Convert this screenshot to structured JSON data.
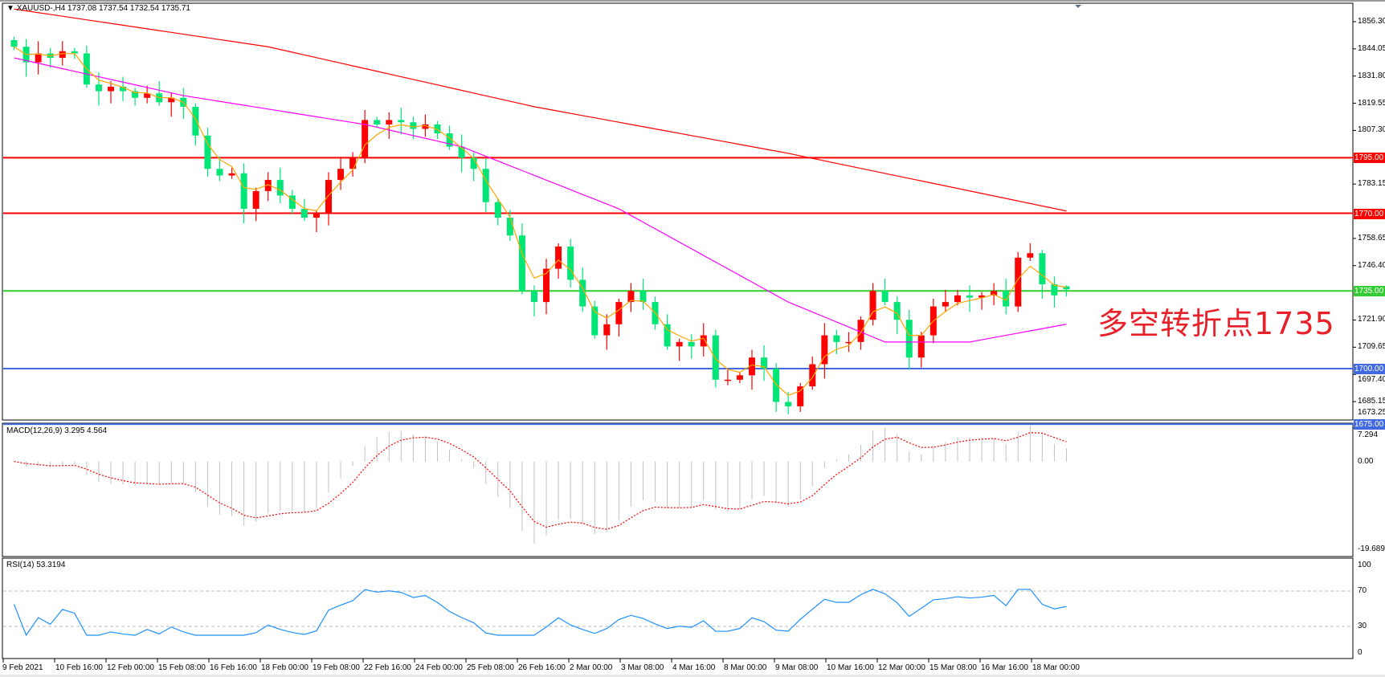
{
  "header": {
    "symbol_label": "XAUUSD-,H4",
    "ohlc": "1737.08 1737.54 1732.54 1735.71"
  },
  "annotation": "多空转折点1735",
  "colors": {
    "bull": "#ff0000",
    "bear": "#00e676",
    "ma_short": "#ffa500",
    "ma_mid": "#ff00ff",
    "ma_long": "#ff0000",
    "macd_hist": "#c0c0c0",
    "macd_signal": "#ff0000",
    "rsi": "#1e90ff"
  },
  "price_axis": {
    "ticks": [
      "1856.30",
      "1844.05",
      "1831.80",
      "1819.55",
      "1807.30",
      "1783.15",
      "1758.65",
      "1746.40",
      "1721.90",
      "1709.65",
      "1697.40",
      "1685.15",
      "1673.25"
    ]
  },
  "levels": [
    {
      "price": 1795.0,
      "label": "1795.00",
      "color": "#ff0000"
    },
    {
      "price": 1770.0,
      "label": "1770.00",
      "color": "#ff0000"
    },
    {
      "price": 1735.0,
      "label": "1735.00",
      "color": "#32cd32"
    },
    {
      "price": 1700.0,
      "label": "1700.00",
      "color": "#4169e1"
    },
    {
      "price": 1675.0,
      "label": "1675.00",
      "color": "#4169e1"
    }
  ],
  "macd": {
    "label": "MACD(12,26,9) 3.295 4.564",
    "ticks": [
      "7.294",
      "0.00",
      "-19.689"
    ]
  },
  "rsi": {
    "label": "RSI(14) 53.3194",
    "ticks": [
      "100",
      "70",
      "30",
      "0"
    ]
  },
  "time_axis": [
    "9 Feb 2021",
    "10 Feb 16:00",
    "12 Feb 00:00",
    "15 Feb 08:00",
    "16 Feb 16:00",
    "18 Feb 00:00",
    "19 Feb 08:00",
    "22 Feb 16:00",
    "24 Feb 00:00",
    "25 Feb 08:00",
    "26 Feb 16:00",
    "2 Mar 00:00",
    "3 Mar 08:00",
    "4 Mar 16:00",
    "8 Mar 00:00",
    "9 Mar 08:00",
    "10 Mar 16:00",
    "12 Mar 00:00",
    "15 Mar 08:00",
    "16 Mar 16:00",
    "18 Mar 00:00"
  ],
  "chart_data": {
    "type": "candlestick",
    "closes": [
      1845,
      1838,
      1842,
      1840,
      1843,
      1842,
      1828,
      1825,
      1827,
      1825,
      1822,
      1824,
      1820,
      1822,
      1818,
      1805,
      1790,
      1787,
      1788,
      1772,
      1780,
      1785,
      1778,
      1772,
      1768,
      1770,
      1785,
      1790,
      1795,
      1812,
      1810,
      1812,
      1811,
      1808,
      1810,
      1806,
      1800,
      1795,
      1790,
      1775,
      1768,
      1760,
      1735,
      1730,
      1745,
      1755,
      1740,
      1728,
      1715,
      1720,
      1730,
      1735,
      1730,
      1720,
      1710,
      1712,
      1710,
      1715,
      1695,
      1695,
      1697,
      1705,
      1700,
      1685,
      1683,
      1692,
      1702,
      1715,
      1712,
      1712,
      1722,
      1735,
      1730,
      1722,
      1705,
      1715,
      1728,
      1730,
      1733,
      1732,
      1733,
      1735,
      1728,
      1750,
      1752,
      1738,
      1733,
      1735.71
    ],
    "last_bar": {
      "open": 1737.08,
      "high": 1737.54,
      "low": 1732.54,
      "close": 1735.71
    },
    "ma_long": [
      [
        0,
        1862
      ],
      [
        21,
        1845
      ],
      [
        43,
        1818
      ],
      [
        64,
        1797
      ],
      [
        87,
        1771
      ]
    ],
    "ma_mid": [
      [
        0,
        1840
      ],
      [
        14,
        1823
      ],
      [
        29,
        1810
      ],
      [
        37,
        1800
      ],
      [
        50,
        1772
      ],
      [
        64,
        1730
      ],
      [
        72,
        1712
      ],
      [
        79,
        1712
      ],
      [
        87,
        1720
      ]
    ],
    "price_range": [
      1673.25,
      1862
    ],
    "macd_range": [
      -19.689,
      7.294
    ],
    "rsi_levels": [
      70,
      30
    ]
  }
}
